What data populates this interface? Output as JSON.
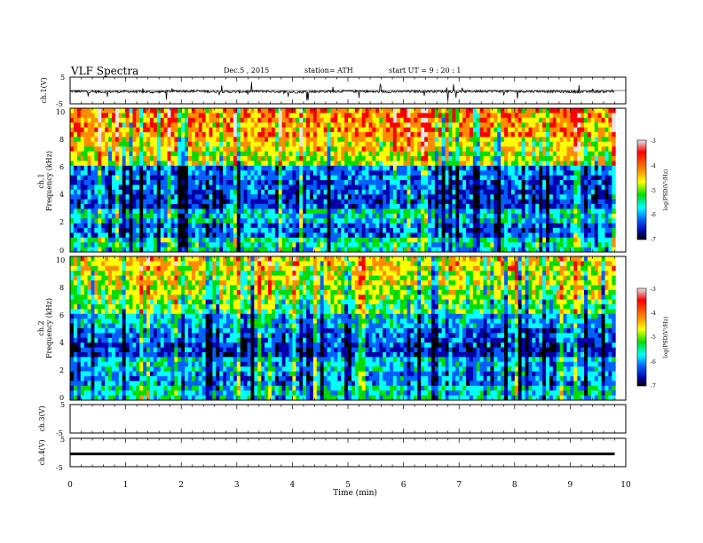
{
  "header": {
    "title": "VLF  Spectra",
    "date": "Dec.5  , 2015",
    "station": "station= ATH",
    "start": "start  UT  =   9  : 20 : 1"
  },
  "panels": {
    "ch1_waveform": {
      "ylabel": "ch.1(V)",
      "ticks": [
        "5",
        "-5"
      ]
    },
    "ch1_spectrogram": {
      "ylabel_top": "ch.1",
      "ylabel": "Frequency  (kHz)",
      "ticks": [
        "10",
        "8",
        "6",
        "4",
        "2",
        "0"
      ]
    },
    "ch2_spectrogram": {
      "ylabel_top": "ch.2",
      "ylabel": "Frequency  (kHz)",
      "ticks": [
        "10",
        "8",
        "6",
        "4",
        "2",
        "0"
      ]
    },
    "ch3_waveform": {
      "ylabel": "ch.3(V)",
      "ticks": [
        "5",
        "-5"
      ]
    },
    "ch4_waveform": {
      "ylabel": "ch.4(V)",
      "ticks": [
        "5",
        "-5"
      ]
    }
  },
  "colorbar": {
    "label": "log(PSD(V²/Hz)",
    "ticks": [
      "-3",
      "-4",
      "-5",
      "-6",
      "-7"
    ],
    "colors": [
      "#e6e6e6",
      "#ff0000",
      "#ff8c00",
      "#ffff00",
      "#00dd00",
      "#00ffff",
      "#0060ff",
      "#0000aa",
      "#000000"
    ]
  },
  "xaxis": {
    "label": "Time  (min)",
    "ticks": [
      "0",
      "1",
      "2",
      "3",
      "4",
      "5",
      "6",
      "7",
      "8",
      "9",
      "10"
    ]
  },
  "chart_data": [
    {
      "type": "line",
      "title": "VLF  Spectra",
      "name": "ch.1 waveform",
      "xlabel": "Time  (min)",
      "ylabel": "ch.1(V)",
      "xlim": [
        0,
        10
      ],
      "ylim": [
        -5,
        5
      ],
      "x": [
        0,
        0.5,
        1,
        1.5,
        2,
        2.5,
        3,
        3.5,
        4,
        4.5,
        5,
        5.5,
        6,
        6.5,
        7,
        7.5,
        8,
        8.5,
        9,
        9.5,
        9.8
      ],
      "y": [
        -0.3,
        -0.5,
        -0.4,
        -0.6,
        -0.2,
        -0.4,
        -0.5,
        -0.3,
        -0.6,
        -0.4,
        -0.3,
        -0.5,
        -0.4,
        -0.3,
        -0.5,
        -0.2,
        -0.4,
        -0.3,
        -0.5,
        -0.4,
        -0.3
      ]
    },
    {
      "type": "heatmap",
      "name": "ch.1 spectrogram",
      "xlabel": "Time  (min)",
      "ylabel": "Frequency  (kHz)",
      "xlim": [
        0,
        10
      ],
      "ylim": [
        0,
        10
      ],
      "colorbar_label": "log(PSD(V²/Hz)",
      "zlim": [
        -7,
        -3
      ],
      "freq_khz": [
        9.5,
        8.5,
        7.5,
        6.5,
        5.5,
        4.5,
        3.5,
        2.5,
        1.5,
        0.5
      ],
      "log_psd_typical": [
        -3.9,
        -4.0,
        -4.3,
        -4.6,
        -5.9,
        -6.1,
        -6.2,
        -5.5,
        -6.0,
        -5.3
      ]
    },
    {
      "type": "heatmap",
      "name": "ch.2 spectrogram",
      "xlabel": "Time  (min)",
      "ylabel": "Frequency  (kHz)",
      "xlim": [
        0,
        10
      ],
      "ylim": [
        0,
        10
      ],
      "colorbar_label": "log(PSD(V²/Hz)",
      "zlim": [
        -7,
        -3
      ],
      "freq_khz": [
        9.5,
        8.5,
        7.5,
        6.5,
        5.5,
        4.5,
        3.5,
        2.5,
        1.5,
        0.5
      ],
      "log_psd_typical": [
        -4.3,
        -4.5,
        -4.7,
        -5.0,
        -5.6,
        -6.0,
        -6.2,
        -5.6,
        -5.8,
        -5.4
      ]
    },
    {
      "type": "line",
      "name": "ch.3 waveform",
      "xlabel": "Time  (min)",
      "ylabel": "ch.3(V)",
      "xlim": [
        0,
        10
      ],
      "ylim": [
        -5,
        5
      ],
      "x": [],
      "y": []
    },
    {
      "type": "line",
      "name": "ch.4 waveform",
      "xlabel": "Time  (min)",
      "ylabel": "ch.4(V)",
      "xlim": [
        0,
        10
      ],
      "ylim": [
        -5,
        5
      ],
      "x": [
        0,
        9.8
      ],
      "y": [
        -0.5,
        -0.5
      ]
    }
  ]
}
